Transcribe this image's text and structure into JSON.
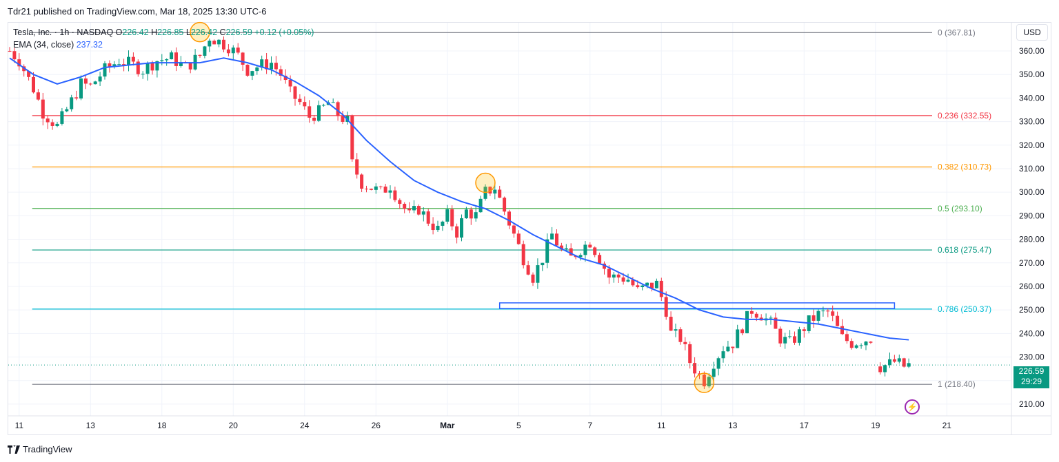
{
  "header": {
    "publisher_text": "Tdr21 published on TradingView.com, Mar 18, 2025 13:30 UTC-6"
  },
  "legend": {
    "symbol": "Tesla, Inc. · 1h · NASDAQ",
    "o_label": "O",
    "o_value": "226.42",
    "h_label": "H",
    "h_value": "226.85",
    "l_label": "L",
    "l_value": "226.42",
    "c_label": "C",
    "c_value": "226.59",
    "change": "+0.12 (+0.05%)",
    "ema_label": "EMA (34, close)",
    "ema_value": "237.32"
  },
  "toolbar": {
    "currency_label": "USD"
  },
  "last_price": {
    "value": "226.59",
    "countdown": "29:29"
  },
  "footer": {
    "brand": "TradingView"
  },
  "colors": {
    "up": "#089981",
    "down": "#f23645",
    "ema": "#2962ff",
    "fib_0": "#787b86",
    "fib_0236": "#f23645",
    "fib_0382": "#ff9800",
    "fib_05": "#4caf50",
    "fib_0618": "#089981",
    "fib_0786": "#00bcd4",
    "fib_1": "#787b86",
    "marker": "#ff9800",
    "zone": "#2962ff"
  },
  "chart_data": {
    "type": "candlestick",
    "ylim": [
      205,
      372
    ],
    "y_ticks": [
      210,
      220,
      230,
      240,
      250,
      260,
      270,
      280,
      290,
      300,
      310,
      320,
      330,
      340,
      350,
      360
    ],
    "x_ticks": [
      {
        "label": "11",
        "index": 2
      },
      {
        "label": "13",
        "index": 17
      },
      {
        "label": "18",
        "index": 32
      },
      {
        "label": "20",
        "index": 47
      },
      {
        "label": "24",
        "index": 62
      },
      {
        "label": "26",
        "index": 77
      },
      {
        "label": "Mar",
        "index": 92
      },
      {
        "label": "5",
        "index": 107
      },
      {
        "label": "7",
        "index": 122
      },
      {
        "label": "11",
        "index": 137
      },
      {
        "label": "13",
        "index": 152
      },
      {
        "label": "17",
        "index": 167
      },
      {
        "label": "19",
        "index": 182
      },
      {
        "label": "21",
        "index": 197
      }
    ],
    "fib_levels": [
      {
        "level": "0",
        "value": 367.81,
        "label": "0 (367.81)"
      },
      {
        "level": "0.236",
        "value": 332.55,
        "label": "0.236 (332.55)"
      },
      {
        "level": "0.382",
        "value": 310.73,
        "label": "0.382 (310.73)"
      },
      {
        "level": "0.5",
        "value": 293.1,
        "label": "0.5 (293.10)"
      },
      {
        "level": "0.618",
        "value": 275.47,
        "label": "0.618 (275.47)"
      },
      {
        "level": "0.786",
        "value": 250.37,
        "label": "0.786 (250.37)"
      },
      {
        "level": "1",
        "value": 218.4,
        "label": "1 (218.40)"
      }
    ],
    "fib_start_index": 3,
    "fib_end_index": 192,
    "zone": {
      "from_index": 103,
      "to_index": 186,
      "low": 250.6,
      "high": 253.0
    },
    "markers": [
      {
        "index": 40,
        "price": 368
      },
      {
        "index": 100,
        "price": 304
      },
      {
        "index": 146,
        "price": 219
      }
    ],
    "candle_waypoints": [
      [
        0,
        360
      ],
      [
        2,
        356
      ],
      [
        5,
        344
      ],
      [
        7,
        334
      ],
      [
        10,
        328
      ],
      [
        12,
        335
      ],
      [
        15,
        346
      ],
      [
        17,
        345
      ],
      [
        20,
        352
      ],
      [
        23,
        356
      ],
      [
        26,
        354
      ],
      [
        28,
        352
      ],
      [
        31,
        356
      ],
      [
        34,
        357
      ],
      [
        37,
        353
      ],
      [
        40,
        358
      ],
      [
        42,
        366
      ],
      [
        44,
        364
      ],
      [
        46,
        362
      ],
      [
        48,
        358
      ],
      [
        50,
        352
      ],
      [
        53,
        354
      ],
      [
        55,
        355
      ],
      [
        57,
        350
      ],
      [
        59,
        342
      ],
      [
        61,
        338
      ],
      [
        63,
        332
      ],
      [
        65,
        334
      ],
      [
        67,
        338
      ],
      [
        69,
        333
      ],
      [
        71,
        330
      ],
      [
        72,
        312
      ],
      [
        74,
        304
      ],
      [
        76,
        302
      ],
      [
        78,
        300
      ],
      [
        80,
        303
      ],
      [
        82,
        296
      ],
      [
        84,
        290
      ],
      [
        86,
        293
      ],
      [
        88,
        288
      ],
      [
        90,
        284
      ],
      [
        92,
        290
      ],
      [
        94,
        283
      ],
      [
        96,
        292
      ],
      [
        98,
        290
      ],
      [
        100,
        300
      ],
      [
        102,
        302
      ],
      [
        104,
        292
      ],
      [
        106,
        282
      ],
      [
        108,
        272
      ],
      [
        110,
        264
      ],
      [
        112,
        272
      ],
      [
        114,
        282
      ],
      [
        116,
        275
      ],
      [
        118,
        272
      ],
      [
        120,
        276
      ],
      [
        122,
        279
      ],
      [
        124,
        272
      ],
      [
        126,
        264
      ],
      [
        128,
        264
      ],
      [
        130,
        263
      ],
      [
        132,
        258
      ],
      [
        134,
        260
      ],
      [
        136,
        261
      ],
      [
        138,
        250
      ],
      [
        139,
        240
      ],
      [
        141,
        238
      ],
      [
        143,
        228
      ],
      [
        145,
        222
      ],
      [
        146,
        220
      ],
      [
        148,
        228
      ],
      [
        150,
        234
      ],
      [
        152,
        236
      ],
      [
        154,
        243
      ],
      [
        156,
        250
      ],
      [
        158,
        248
      ],
      [
        160,
        244
      ],
      [
        162,
        238
      ],
      [
        164,
        236
      ],
      [
        166,
        240
      ],
      [
        168,
        245
      ],
      [
        170,
        248
      ],
      [
        172,
        249
      ],
      [
        173,
        246
      ],
      [
        175,
        238
      ],
      [
        177,
        236
      ],
      [
        179,
        237
      ],
      [
        181,
        238
      ],
      [
        183,
        226
      ],
      [
        185,
        227
      ],
      [
        186,
        228
      ],
      [
        188,
        226
      ],
      [
        189,
        226.59
      ]
    ],
    "candle_count": 190,
    "ema": [
      [
        0,
        357
      ],
      [
        5,
        350
      ],
      [
        10,
        346
      ],
      [
        15,
        349
      ],
      [
        20,
        353
      ],
      [
        25,
        354
      ],
      [
        30,
        355
      ],
      [
        35,
        355
      ],
      [
        40,
        355
      ],
      [
        45,
        357
      ],
      [
        50,
        355
      ],
      [
        55,
        352
      ],
      [
        60,
        347
      ],
      [
        65,
        341
      ],
      [
        70,
        333
      ],
      [
        75,
        322
      ],
      [
        80,
        313
      ],
      [
        85,
        305
      ],
      [
        90,
        300
      ],
      [
        95,
        296
      ],
      [
        100,
        293
      ],
      [
        105,
        288
      ],
      [
        110,
        282
      ],
      [
        115,
        277
      ],
      [
        120,
        272
      ],
      [
        125,
        269
      ],
      [
        130,
        264
      ],
      [
        135,
        259
      ],
      [
        140,
        255
      ],
      [
        145,
        250
      ],
      [
        150,
        247
      ],
      [
        155,
        246
      ],
      [
        160,
        246
      ],
      [
        165,
        245
      ],
      [
        170,
        244
      ],
      [
        175,
        242
      ],
      [
        180,
        240
      ],
      [
        185,
        238
      ],
      [
        189,
        237.3
      ]
    ]
  }
}
